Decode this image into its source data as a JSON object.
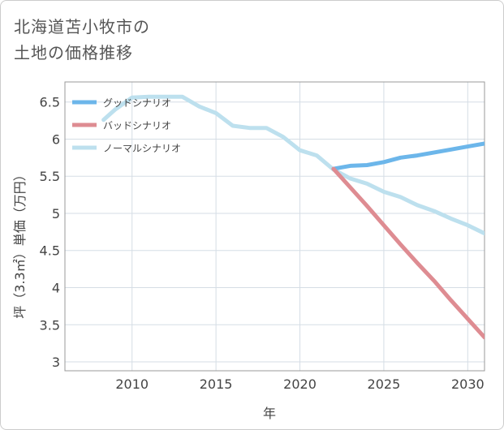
{
  "title_lines": [
    "北海道苫小牧市の",
    "土地の価格推移"
  ],
  "chart_data": {
    "type": "line",
    "xlabel": "年",
    "ylabel": "坪（3.3㎡）単価（万円）",
    "xlim": [
      2006,
      2031
    ],
    "ylim": [
      2.88,
      6.77
    ],
    "x_ticks": [
      2010,
      2015,
      2020,
      2025,
      2030
    ],
    "y_ticks": [
      3,
      3.5,
      4,
      4.5,
      5,
      5.5,
      6,
      6.5
    ],
    "y_tick_labels": [
      "3",
      "3.5",
      "4",
      "4.5",
      "5",
      "5.5",
      "6",
      "6.5"
    ],
    "grid": true,
    "legend_position": "top-left",
    "series": [
      {
        "name": "グッドシナリオ",
        "color": "#6cb6ea",
        "x": [
          2022,
          2023,
          2024,
          2025,
          2026,
          2027,
          2028,
          2029,
          2030,
          2031
        ],
        "y": [
          5.6,
          5.64,
          5.65,
          5.69,
          5.75,
          5.78,
          5.82,
          5.86,
          5.9,
          5.94
        ]
      },
      {
        "name": "バッドシナリオ",
        "color": "#de8c92",
        "x": [
          2022,
          2023,
          2024,
          2025,
          2026,
          2027,
          2028,
          2029,
          2030,
          2031
        ],
        "y": [
          5.6,
          5.35,
          5.1,
          4.84,
          4.58,
          4.33,
          4.09,
          3.83,
          3.58,
          3.33
        ]
      },
      {
        "name": "ノーマルシナリオ",
        "color": "#bde0ee",
        "x": [
          2008.3,
          2009,
          2010,
          2011,
          2012,
          2013,
          2014,
          2015,
          2016,
          2017,
          2018,
          2019,
          2020,
          2021,
          2022,
          2023,
          2024,
          2025,
          2026,
          2027,
          2028,
          2029,
          2030,
          2031
        ],
        "y": [
          6.26,
          6.4,
          6.56,
          6.57,
          6.57,
          6.57,
          6.44,
          6.35,
          6.18,
          6.15,
          6.15,
          6.03,
          5.85,
          5.78,
          5.59,
          5.47,
          5.4,
          5.29,
          5.22,
          5.11,
          5.03,
          4.93,
          4.84,
          4.73
        ]
      }
    ]
  }
}
